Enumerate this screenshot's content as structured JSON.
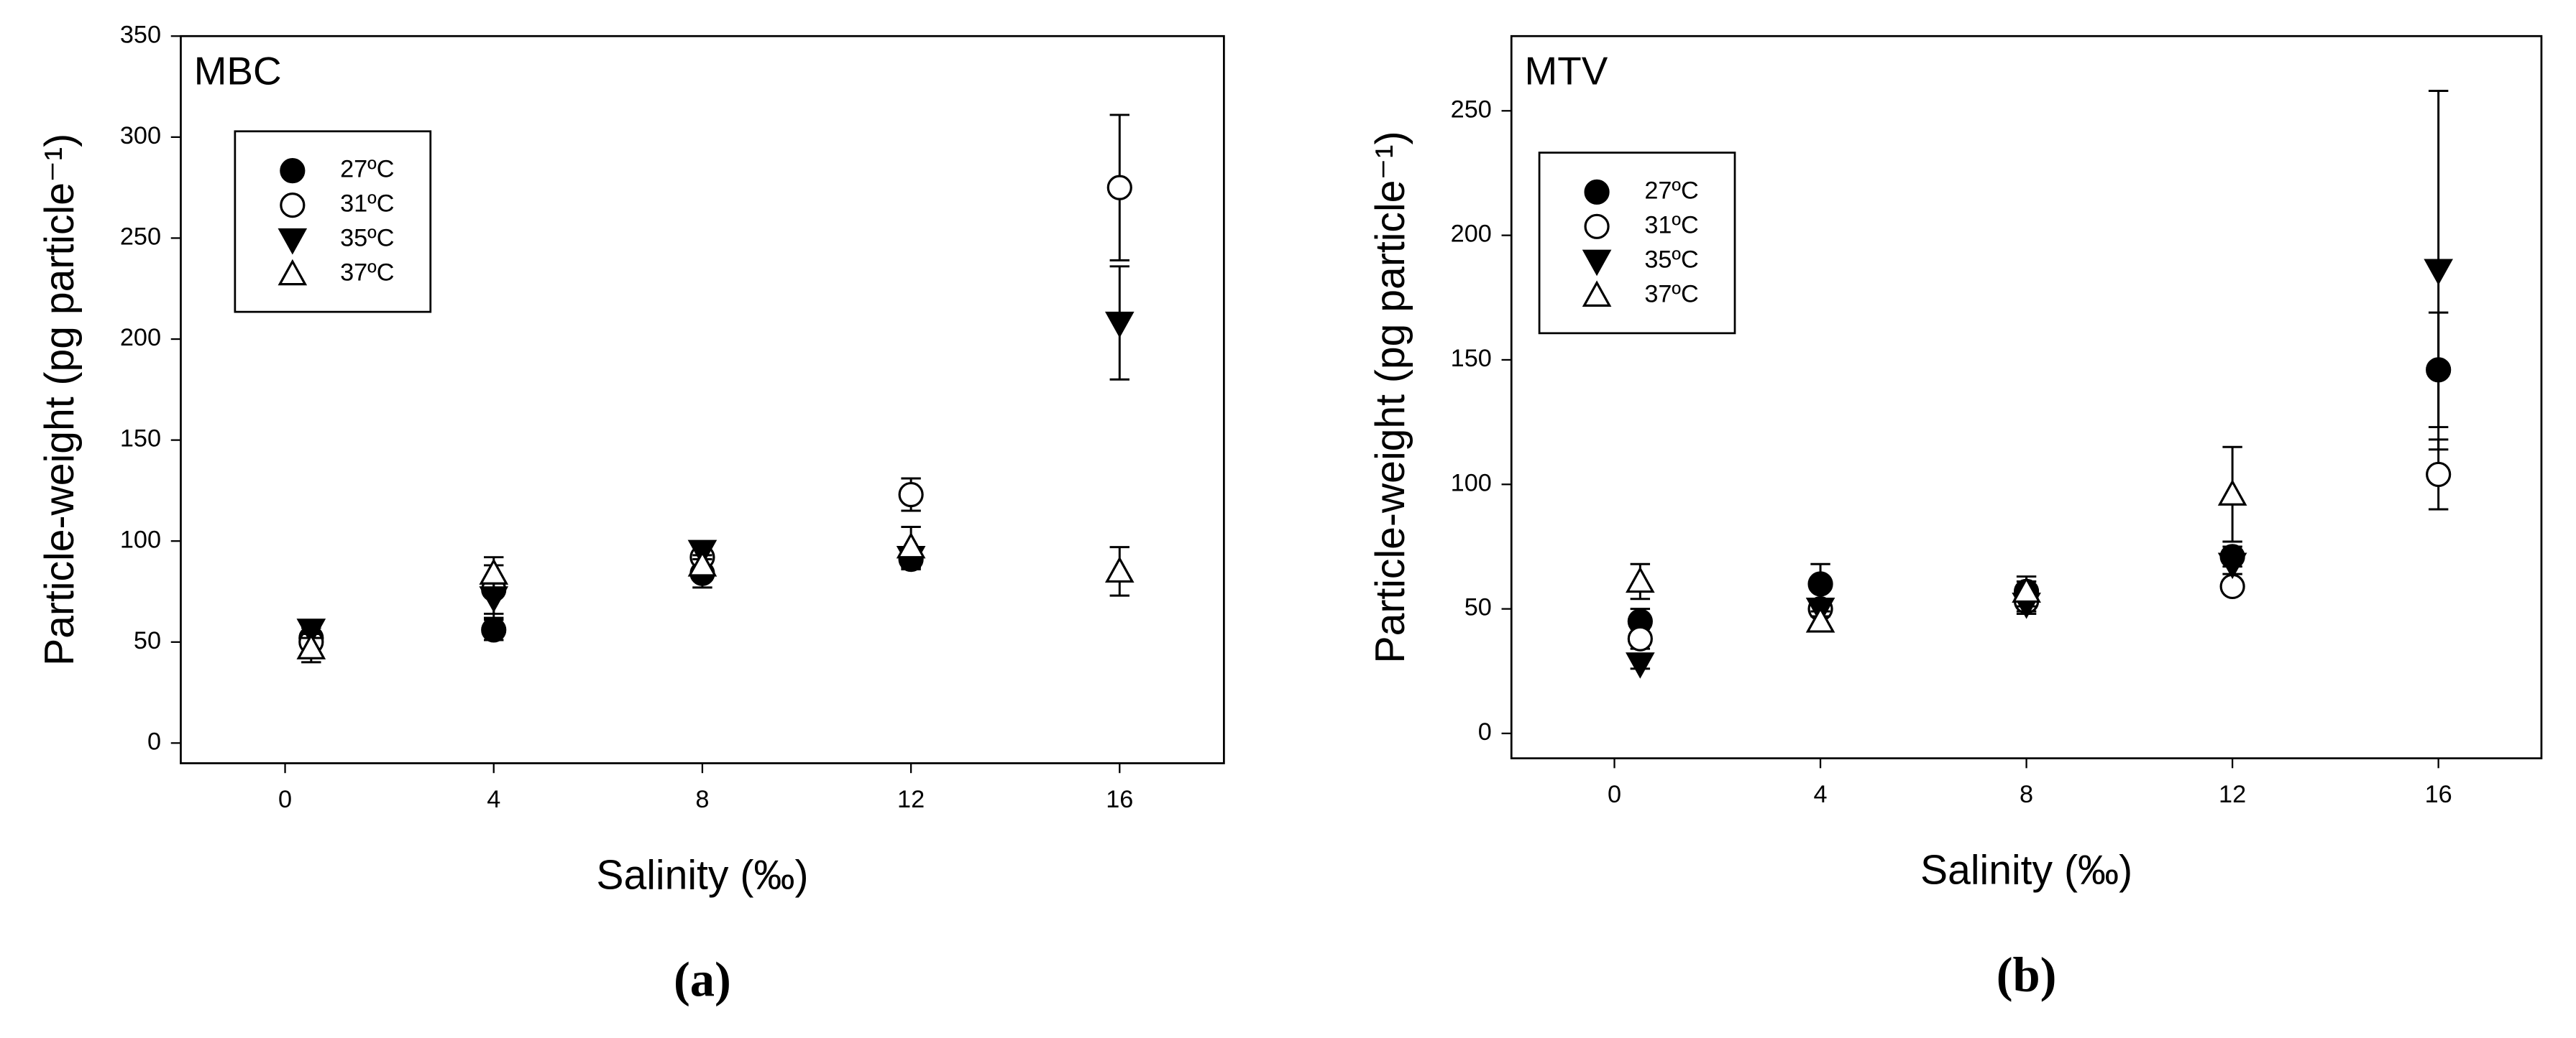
{
  "chart_data": [
    {
      "type": "scatter",
      "title": "MBC",
      "panel_label": "(a)",
      "x_label": "Salinity (‰)",
      "y_label": "Particle-weight (pg particle⁻¹)",
      "x": [
        0.5,
        4,
        8,
        12,
        16
      ],
      "xlim": [
        -2,
        18
      ],
      "xticks": [
        0,
        4,
        8,
        12,
        16
      ],
      "ylim": [
        -10,
        350
      ],
      "yticks": [
        0,
        50,
        100,
        150,
        200,
        250,
        300,
        350
      ],
      "legend": "upper left",
      "series": [
        {
          "name": "27ºC",
          "color": "#000000",
          "marker": "circle",
          "filled": true,
          "values": [
            52,
            56,
            84,
            91,
            null
          ],
          "errors": [
            5,
            5,
            7,
            5,
            null
          ]
        },
        {
          "name": "31ºC",
          "color": "#000000",
          "marker": "circle",
          "filled": false,
          "values": [
            50,
            76,
            92,
            123,
            275
          ],
          "errors": [
            5,
            12,
            5,
            8,
            36
          ]
        },
        {
          "name": "35ºC",
          "color": "#000000",
          "marker": "triangle-down",
          "filled": true,
          "values": [
            56,
            72,
            95,
            92,
            208
          ],
          "errors": [
            4,
            10,
            4,
            5,
            28
          ]
        },
        {
          "name": "37ºC",
          "color": "#000000",
          "marker": "triangle-up",
          "filled": false,
          "values": [
            47,
            84,
            88,
            97,
            85
          ],
          "errors": [
            7,
            8,
            5,
            10,
            12
          ]
        }
      ]
    },
    {
      "type": "scatter",
      "title": "MTV",
      "panel_label": "(b)",
      "x_label": "Salinity (‰)",
      "y_label": "Particle-weight (pg particle⁻¹)",
      "x": [
        0.5,
        4,
        8,
        12,
        16
      ],
      "xlim": [
        -2,
        18
      ],
      "xticks": [
        0,
        4,
        8,
        12,
        16
      ],
      "ylim": [
        -10,
        280
      ],
      "yticks": [
        0,
        50,
        100,
        150,
        200,
        250
      ],
      "legend": "upper left",
      "series": [
        {
          "name": "27ºC",
          "color": "#000000",
          "marker": "circle",
          "filled": true,
          "values": [
            45,
            60,
            57,
            71,
            146
          ],
          "errors": [
            5,
            8,
            4,
            4,
            23
          ]
        },
        {
          "name": "31ºC",
          "color": "#000000",
          "marker": "circle",
          "filled": false,
          "values": [
            38,
            50,
            53,
            59,
            104
          ],
          "errors": [
            4,
            3,
            5,
            2,
            14
          ]
        },
        {
          "name": "35ºC",
          "color": "#000000",
          "marker": "triangle-down",
          "filled": true,
          "values": [
            28,
            50,
            52,
            68,
            186
          ],
          "errors": [
            2,
            3,
            3,
            4,
            72
          ]
        },
        {
          "name": "37ºC",
          "color": "#000000",
          "marker": "triangle-up",
          "filled": false,
          "values": [
            61,
            45,
            57,
            96,
            null
          ],
          "errors": [
            7,
            4,
            6,
            19,
            null
          ]
        }
      ]
    }
  ]
}
